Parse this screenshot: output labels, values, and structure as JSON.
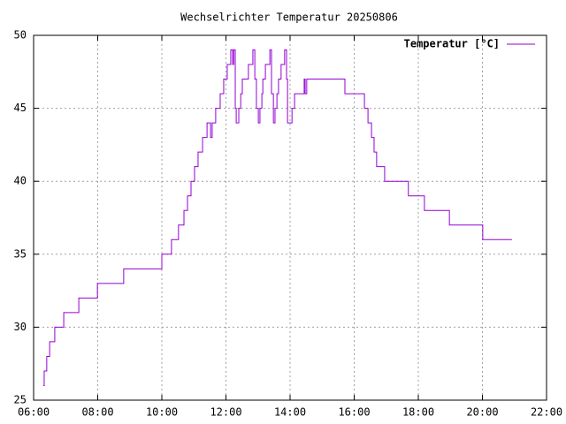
{
  "chart_data": {
    "type": "line",
    "title": "Wechselrichter Temperatur 20250806",
    "xlim": [
      6,
      22
    ],
    "xticks": [
      {
        "value": 6,
        "label": "06:00"
      },
      {
        "value": 8,
        "label": "08:00"
      },
      {
        "value": 10,
        "label": "10:00"
      },
      {
        "value": 12,
        "label": "12:00"
      },
      {
        "value": 14,
        "label": "14:00"
      },
      {
        "value": 16,
        "label": "16:00"
      },
      {
        "value": 18,
        "label": "18:00"
      },
      {
        "value": 20,
        "label": "20:00"
      },
      {
        "value": 22,
        "label": "22:00"
      }
    ],
    "ylim": [
      25,
      50
    ],
    "yticks": [
      25,
      30,
      35,
      40,
      45,
      50
    ],
    "grid": true,
    "legend": "top-right",
    "series": [
      {
        "name": "Temperatur [°C]",
        "color": "#9400d3",
        "x": [
          6.3,
          6.33,
          6.33,
          6.41,
          6.41,
          6.5,
          6.5,
          6.66,
          6.66,
          6.94,
          6.94,
          7.41,
          7.41,
          7.99,
          7.99,
          8.81,
          8.81,
          10.0,
          10.0,
          10.3,
          10.3,
          10.52,
          10.52,
          10.69,
          10.69,
          10.8,
          10.8,
          10.91,
          10.91,
          11.02,
          11.02,
          11.13,
          11.13,
          11.27,
          11.27,
          11.41,
          11.41,
          11.52,
          11.52,
          11.57,
          11.57,
          11.68,
          11.68,
          11.82,
          11.82,
          11.93,
          11.93,
          12.04,
          12.04,
          12.15,
          12.15,
          12.21,
          12.21,
          12.24,
          12.24,
          12.29,
          12.29,
          12.32,
          12.32,
          12.4,
          12.4,
          12.46,
          12.46,
          12.51,
          12.51,
          12.7,
          12.7,
          12.84,
          12.84,
          12.9,
          12.9,
          12.95,
          12.95,
          13.01,
          13.01,
          13.06,
          13.06,
          13.12,
          13.12,
          13.15,
          13.15,
          13.23,
          13.23,
          13.37,
          13.37,
          13.42,
          13.42,
          13.48,
          13.48,
          13.53,
          13.53,
          13.59,
          13.59,
          13.64,
          13.64,
          13.72,
          13.72,
          13.83,
          13.83,
          13.89,
          13.89,
          13.92,
          13.92,
          14.06,
          14.06,
          14.14,
          14.14,
          14.44,
          14.44,
          14.47,
          14.47,
          14.52,
          14.52,
          15.71,
          15.71,
          16.32,
          16.32,
          16.43,
          16.43,
          16.54,
          16.54,
          16.62,
          16.62,
          16.7,
          16.7,
          16.95,
          16.95,
          17.69,
          17.69,
          18.19,
          18.19,
          18.97,
          18.97,
          20.01,
          20.01,
          20.92
        ],
        "values": [
          26,
          26,
          27,
          27,
          28,
          28,
          29,
          29,
          30,
          30,
          31,
          31,
          32,
          32,
          33,
          33,
          34,
          34,
          35,
          35,
          36,
          36,
          37,
          37,
          38,
          38,
          39,
          39,
          40,
          40,
          41,
          41,
          42,
          42,
          43,
          43,
          44,
          44,
          43,
          43,
          44,
          44,
          45,
          45,
          46,
          46,
          47,
          47,
          48,
          48,
          49,
          49,
          48,
          48,
          49,
          49,
          45,
          45,
          44,
          44,
          45,
          45,
          46,
          46,
          47,
          47,
          48,
          48,
          49,
          49,
          47,
          47,
          45,
          45,
          44,
          44,
          45,
          45,
          46,
          46,
          47,
          47,
          48,
          48,
          49,
          49,
          46,
          46,
          44,
          44,
          45,
          45,
          46,
          46,
          47,
          47,
          48,
          48,
          49,
          49,
          47,
          47,
          44,
          44,
          45,
          45,
          46,
          46,
          47,
          47,
          46,
          46,
          47,
          47,
          46,
          46,
          45,
          45,
          44,
          44,
          43,
          43,
          42,
          42,
          41,
          41,
          40,
          40,
          39,
          39,
          38,
          38,
          37,
          37,
          36,
          36
        ]
      }
    ]
  }
}
